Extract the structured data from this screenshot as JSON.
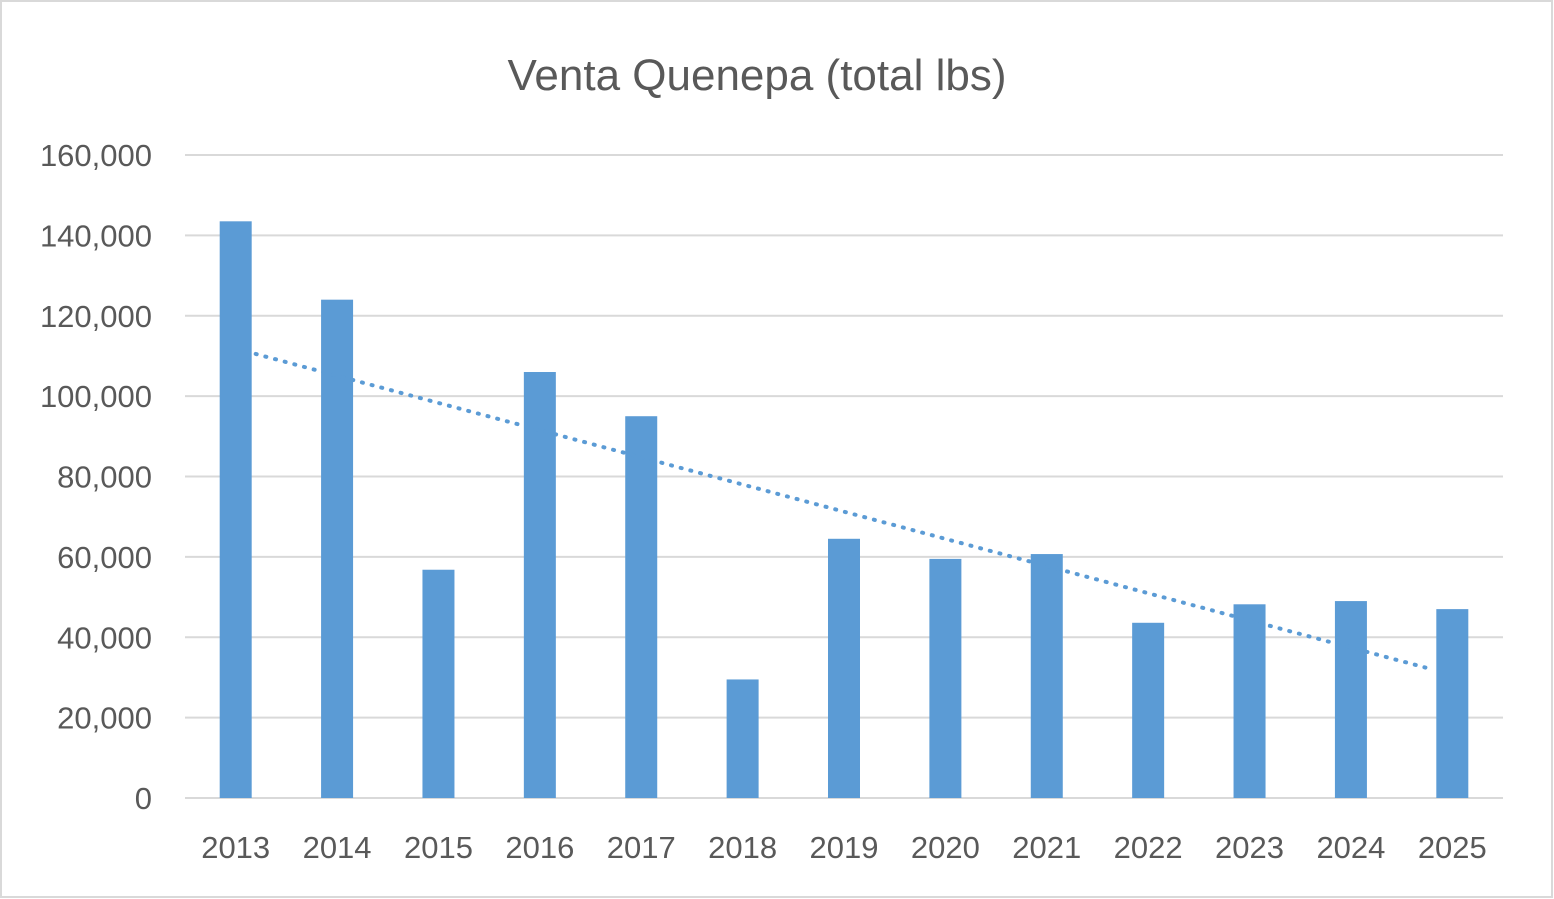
{
  "chart_data": {
    "type": "bar",
    "title": "Venta Quenepa (total lbs)",
    "xlabel": "",
    "ylabel": "",
    "categories": [
      "2013",
      "2014",
      "2015",
      "2016",
      "2017",
      "2018",
      "2019",
      "2020",
      "2021",
      "2022",
      "2023",
      "2024",
      "2025"
    ],
    "series": [
      {
        "values": [
          143500,
          124000,
          56800,
          106000,
          95000,
          29500,
          64500,
          59500,
          60700,
          43600,
          48200,
          49000,
          47000
        ]
      }
    ],
    "trendline": {
      "type": "linear",
      "style": "dotted",
      "start": [
        2013,
        110500
      ],
      "end": [
        2025,
        32000
      ]
    },
    "ylim": [
      0,
      160000
    ],
    "yticks": [
      0,
      20000,
      40000,
      60000,
      80000,
      100000,
      120000,
      140000,
      160000
    ],
    "ytick_labels": [
      "0",
      "20,000",
      "40,000",
      "60,000",
      "80,000",
      "100,000",
      "120,000",
      "140,000",
      "160,000"
    ],
    "grid": true,
    "legend": "none",
    "colors": {
      "bar": "#5b9bd5",
      "trendline": "#5b9bd5",
      "grid": "#d9d9d9",
      "text": "#595959",
      "border": "#d9d9d9"
    }
  }
}
